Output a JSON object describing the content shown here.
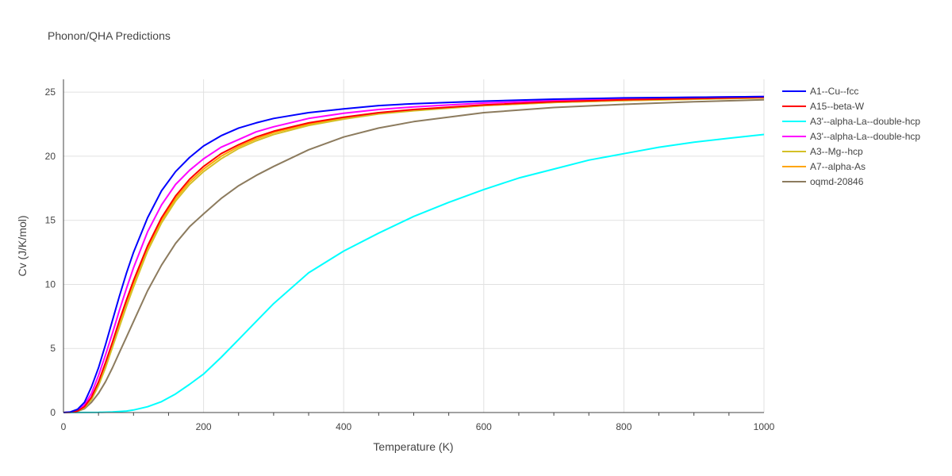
{
  "chart_data": {
    "type": "line",
    "title": "Phonon/QHA Predictions",
    "xlabel": "Temperature (K)",
    "ylabel": "Cv (J/K/mol)",
    "xlim": [
      0,
      1000
    ],
    "ylim": [
      0,
      26
    ],
    "xticks": [
      0,
      200,
      400,
      600,
      800,
      1000
    ],
    "yticks": [
      0,
      5,
      10,
      15,
      20,
      25
    ],
    "grid": true,
    "legend_position": "right",
    "series": [
      {
        "name": "A1--Cu--fcc",
        "color": "#0000ff",
        "x": [
          0,
          10,
          20,
          30,
          40,
          50,
          60,
          70,
          80,
          90,
          100,
          120,
          140,
          160,
          180,
          200,
          225,
          250,
          275,
          300,
          350,
          400,
          450,
          500,
          600,
          700,
          800,
          900,
          1000
        ],
        "y": [
          0,
          0.05,
          0.25,
          0.8,
          2.0,
          3.5,
          5.3,
          7.2,
          9.1,
          10.9,
          12.5,
          15.2,
          17.3,
          18.8,
          19.9,
          20.8,
          21.6,
          22.2,
          22.6,
          22.95,
          23.4,
          23.7,
          23.95,
          24.1,
          24.3,
          24.45,
          24.55,
          24.6,
          24.65
        ]
      },
      {
        "name": "A15--beta-W",
        "color": "#ff0000",
        "x": [
          0,
          10,
          20,
          30,
          40,
          50,
          60,
          70,
          80,
          90,
          100,
          120,
          140,
          160,
          180,
          200,
          225,
          250,
          275,
          300,
          350,
          400,
          450,
          500,
          600,
          700,
          800,
          900,
          1000
        ],
        "y": [
          0,
          0.02,
          0.12,
          0.45,
          1.2,
          2.4,
          3.9,
          5.5,
          7.2,
          8.8,
          10.3,
          13.0,
          15.2,
          16.9,
          18.2,
          19.2,
          20.2,
          20.9,
          21.5,
          21.95,
          22.6,
          23.05,
          23.4,
          23.65,
          24.0,
          24.25,
          24.4,
          24.5,
          24.6
        ]
      },
      {
        "name": "A3'--alpha-La--double-hcp",
        "color": "#00ffff",
        "x": [
          0,
          50,
          70,
          90,
          100,
          120,
          140,
          160,
          180,
          200,
          225,
          250,
          275,
          300,
          350,
          400,
          450,
          500,
          550,
          600,
          650,
          700,
          750,
          800,
          850,
          900,
          950,
          1000
        ],
        "y": [
          0,
          0.01,
          0.05,
          0.12,
          0.2,
          0.45,
          0.85,
          1.45,
          2.2,
          3.0,
          4.3,
          5.7,
          7.1,
          8.5,
          10.9,
          12.6,
          14.0,
          15.3,
          16.4,
          17.4,
          18.3,
          19.0,
          19.7,
          20.2,
          20.7,
          21.1,
          21.4,
          21.7
        ]
      },
      {
        "name": "A3'--alpha-La--double-hcp",
        "color": "#ff00ff",
        "x": [
          0,
          10,
          20,
          30,
          40,
          50,
          60,
          70,
          80,
          90,
          100,
          120,
          140,
          160,
          180,
          200,
          225,
          250,
          275,
          300,
          350,
          400,
          450,
          500,
          600,
          700,
          800,
          900,
          1000
        ],
        "y": [
          0,
          0.03,
          0.18,
          0.6,
          1.5,
          2.9,
          4.5,
          6.2,
          8.0,
          9.7,
          11.3,
          14.1,
          16.2,
          17.8,
          18.9,
          19.8,
          20.7,
          21.3,
          21.9,
          22.3,
          22.95,
          23.35,
          23.65,
          23.85,
          24.15,
          24.35,
          24.5,
          24.6,
          24.65
        ]
      },
      {
        "name": "A3--Mg--hcp",
        "color": "#d4c027",
        "x": [
          0,
          10,
          20,
          30,
          40,
          50,
          60,
          70,
          80,
          90,
          100,
          120,
          140,
          160,
          180,
          200,
          225,
          250,
          275,
          300,
          350,
          400,
          450,
          500,
          600,
          700,
          800,
          900,
          1000
        ],
        "y": [
          0,
          0.02,
          0.1,
          0.38,
          1.0,
          2.1,
          3.5,
          5.1,
          6.7,
          8.3,
          9.8,
          12.6,
          14.8,
          16.5,
          17.8,
          18.8,
          19.8,
          20.6,
          21.2,
          21.7,
          22.4,
          22.9,
          23.3,
          23.55,
          23.95,
          24.2,
          24.35,
          24.45,
          24.55
        ]
      },
      {
        "name": "A7--alpha-As",
        "color": "#ffa500",
        "x": [
          0,
          10,
          20,
          30,
          40,
          50,
          60,
          70,
          80,
          90,
          100,
          120,
          140,
          160,
          180,
          200,
          225,
          250,
          275,
          300,
          350,
          400,
          450,
          500,
          600,
          700,
          800,
          900,
          1000
        ],
        "y": [
          0,
          0.02,
          0.1,
          0.4,
          1.05,
          2.2,
          3.6,
          5.2,
          6.85,
          8.45,
          10.0,
          12.8,
          15.0,
          16.7,
          18.0,
          19.0,
          20.0,
          20.75,
          21.35,
          21.85,
          22.5,
          23.0,
          23.35,
          23.6,
          23.95,
          24.2,
          24.35,
          24.45,
          24.55
        ]
      },
      {
        "name": "oqmd-20846",
        "color": "#8c7b5e",
        "x": [
          0,
          10,
          20,
          30,
          40,
          50,
          60,
          70,
          80,
          90,
          100,
          120,
          140,
          160,
          180,
          200,
          225,
          250,
          275,
          300,
          350,
          400,
          450,
          500,
          600,
          700,
          800,
          900,
          1000
        ],
        "y": [
          0,
          0.02,
          0.1,
          0.3,
          0.8,
          1.5,
          2.4,
          3.5,
          4.7,
          5.9,
          7.1,
          9.5,
          11.5,
          13.2,
          14.5,
          15.5,
          16.7,
          17.7,
          18.5,
          19.2,
          20.5,
          21.5,
          22.2,
          22.7,
          23.4,
          23.8,
          24.05,
          24.25,
          24.4
        ]
      }
    ]
  }
}
